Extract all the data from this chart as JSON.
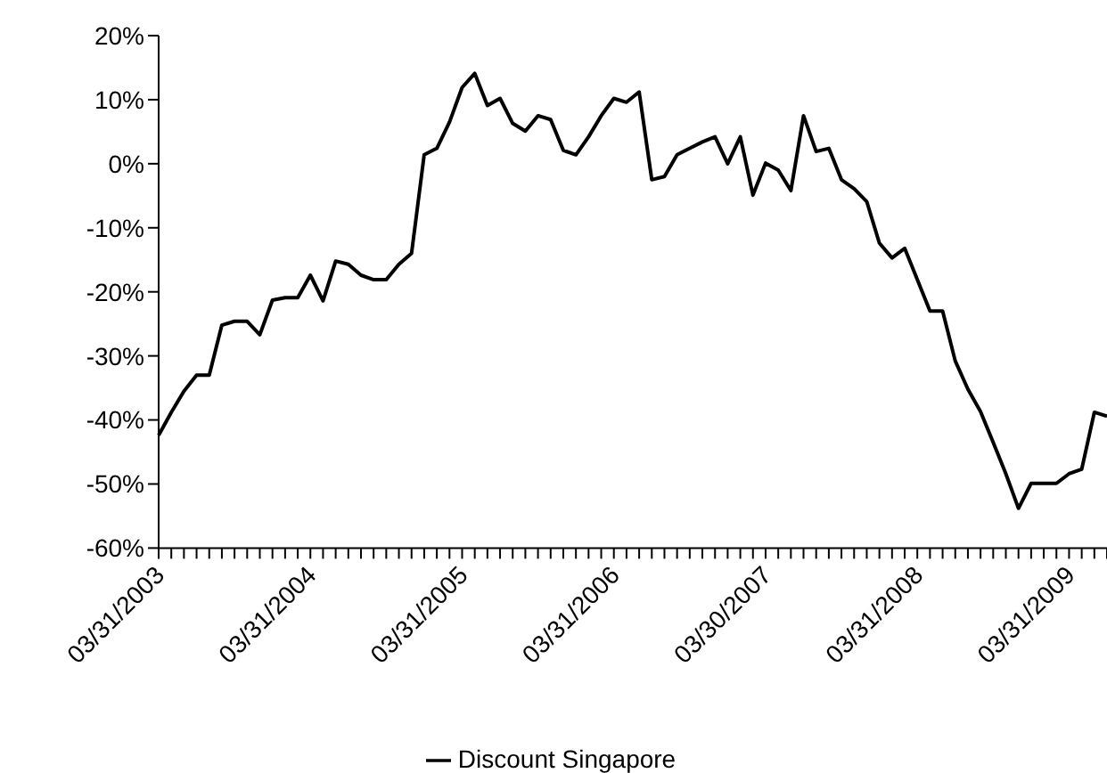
{
  "chart_data": {
    "type": "line",
    "categories": [
      "03/31/2003",
      null,
      null,
      null,
      null,
      null,
      null,
      null,
      null,
      null,
      null,
      null,
      "03/31/2004",
      null,
      null,
      null,
      null,
      null,
      null,
      null,
      null,
      null,
      null,
      null,
      "03/31/2005",
      null,
      null,
      null,
      null,
      null,
      null,
      null,
      null,
      null,
      null,
      null,
      "03/31/2006",
      null,
      null,
      null,
      null,
      null,
      null,
      null,
      null,
      null,
      null,
      null,
      "03/30/2007",
      null,
      null,
      null,
      null,
      null,
      null,
      null,
      null,
      null,
      null,
      null,
      "03/31/2008",
      null,
      null,
      null,
      null,
      null,
      null,
      null,
      null,
      null,
      null,
      null,
      "03/31/2009",
      null,
      null,
      null
    ],
    "series": [
      {
        "name": "Discount Singapore",
        "color": "#000000",
        "values": [
          -42.4,
          -38.8,
          -35.5,
          -33.0,
          -33.0,
          -25.2,
          -24.6,
          -24.6,
          -26.7,
          -21.3,
          -20.9,
          -20.9,
          -17.4,
          -21.4,
          -15.2,
          -15.7,
          -17.4,
          -18.1,
          -18.1,
          -15.7,
          -14.0,
          1.4,
          2.4,
          6.5,
          11.9,
          14.1,
          9.1,
          10.2,
          6.3,
          5.1,
          7.5,
          6.9,
          2.1,
          1.4,
          4.2,
          7.5,
          10.2,
          9.6,
          11.2,
          -2.5,
          -2.0,
          1.4,
          2.4,
          3.4,
          4.2,
          0.0,
          4.2,
          -4.9,
          0.1,
          -1.0,
          -4.2,
          7.5,
          1.9,
          2.4,
          -2.5,
          -3.9,
          -5.9,
          -12.4,
          -14.7,
          -13.2,
          -18.1,
          -23.0,
          -23.0,
          -30.8,
          -35.2,
          -38.7,
          -43.5,
          -48.4,
          -53.8,
          -49.9,
          -49.9,
          -49.9,
          -48.4,
          -47.7,
          -38.8,
          -39.4
        ]
      }
    ],
    "ylim": [
      -60,
      20
    ],
    "yticks": [
      {
        "value": -60,
        "label": "-60%"
      },
      {
        "value": -50,
        "label": "-50%"
      },
      {
        "value": -40,
        "label": "-40%"
      },
      {
        "value": -30,
        "label": "-30%"
      },
      {
        "value": -20,
        "label": "-20%"
      },
      {
        "value": -10,
        "label": "-10%"
      },
      {
        "value": 0,
        "label": "0%"
      },
      {
        "value": 10,
        "label": "10%"
      },
      {
        "value": 20,
        "label": "20%"
      }
    ],
    "grid": false,
    "legend": "bottom",
    "marker": "none",
    "line_style": "solid"
  }
}
